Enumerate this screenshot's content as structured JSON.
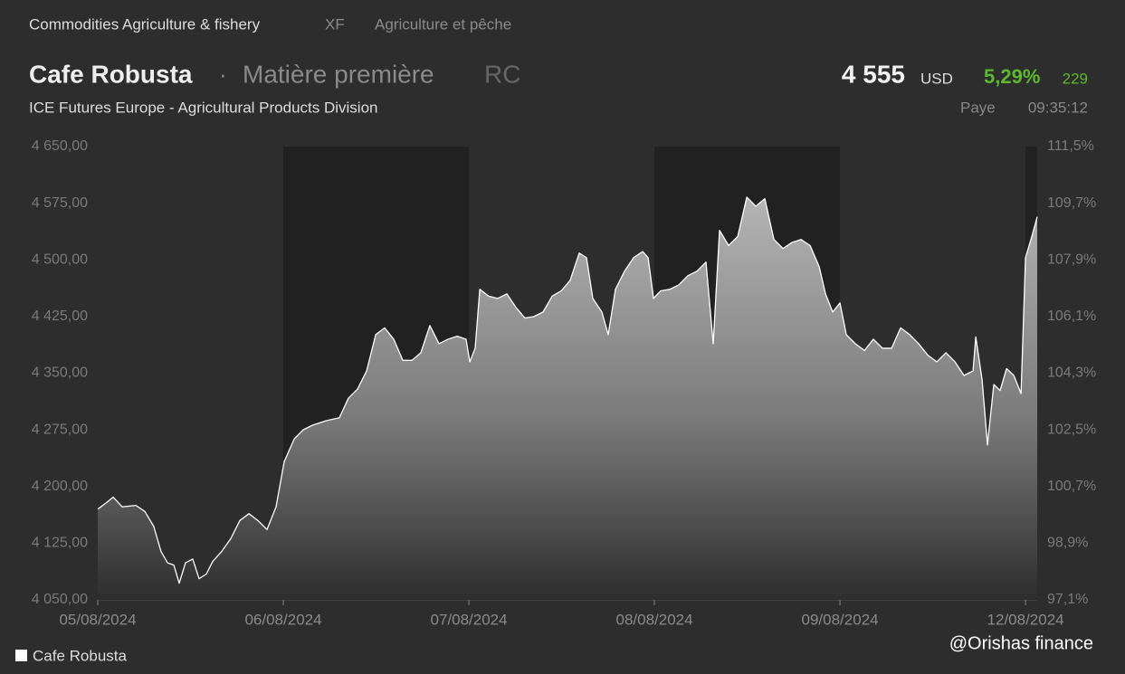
{
  "header": {
    "breadcrumb": "Commodities Agriculture & fishery",
    "code": "XF",
    "category": "Agriculture et pêche",
    "name": "Cafe Robusta",
    "separator": "·",
    "kind": "Matière première",
    "symbol": "RC",
    "price": "4 555",
    "currency": "USD",
    "change_pct": "5,29%",
    "change": "229",
    "exchange": "ICE Futures Europe - Agricultural Products Division",
    "status": "Paye",
    "time": "09:35:12"
  },
  "watermark": "@Orishas finance",
  "chart_data": {
    "type": "area",
    "xlim": [
      0,
      5.063
    ],
    "xticks": [
      {
        "value": 0,
        "label": "05/08/2024"
      },
      {
        "value": 1,
        "label": "06/08/2024"
      },
      {
        "value": 2,
        "label": "07/08/2024"
      },
      {
        "value": 3,
        "label": "08/08/2024"
      },
      {
        "value": 4,
        "label": "09/08/2024"
      },
      {
        "value": 5,
        "label": "12/08/2024"
      }
    ],
    "ylim": [
      4050,
      4650
    ],
    "yticks": [
      {
        "value": 4650,
        "label": "4 650,00"
      },
      {
        "value": 4575,
        "label": "4 575,00"
      },
      {
        "value": 4500,
        "label": "4 500,00"
      },
      {
        "value": 4425,
        "label": "4 425,00"
      },
      {
        "value": 4350,
        "label": "4 350,00"
      },
      {
        "value": 4275,
        "label": "4 275,00"
      },
      {
        "value": 4200,
        "label": "4 200,00"
      },
      {
        "value": 4125,
        "label": "4 125,00"
      },
      {
        "value": 4050,
        "label": "4 050,00"
      }
    ],
    "y2lim": [
      97.1,
      111.5
    ],
    "y2ticks": [
      {
        "value": 111.5,
        "label": "111,5%"
      },
      {
        "value": 109.7,
        "label": "109,7%"
      },
      {
        "value": 107.9,
        "label": "107,9%"
      },
      {
        "value": 106.1,
        "label": "106,1%"
      },
      {
        "value": 104.3,
        "label": "104,3%"
      },
      {
        "value": 102.5,
        "label": "102,5%"
      },
      {
        "value": 100.7,
        "label": "100,7%"
      },
      {
        "value": 98.9,
        "label": "98,9%"
      },
      {
        "value": 97.1,
        "label": "97,1%"
      }
    ],
    "series": [
      {
        "name": "Cafe Robusta",
        "color": "#ffffff",
        "x": [
          0,
          0.049,
          0.083,
          0.132,
          0.205,
          0.254,
          0.302,
          0.341,
          0.376,
          0.41,
          0.439,
          0.473,
          0.512,
          0.546,
          0.585,
          0.62,
          0.668,
          0.717,
          0.766,
          0.815,
          0.863,
          0.912,
          0.961,
          1.005,
          1.059,
          1.107,
          1.156,
          1.229,
          1.302,
          1.351,
          1.4,
          1.449,
          1.498,
          1.546,
          1.595,
          1.644,
          1.693,
          1.741,
          1.79,
          1.839,
          1.888,
          1.937,
          1.985,
          2.005,
          2.034,
          2.059,
          2.107,
          2.156,
          2.205,
          2.254,
          2.302,
          2.351,
          2.4,
          2.449,
          2.498,
          2.546,
          2.595,
          2.634,
          2.668,
          2.717,
          2.751,
          2.79,
          2.839,
          2.888,
          2.937,
          2.966,
          2.995,
          3.034,
          3.083,
          3.132,
          3.18,
          3.229,
          3.278,
          3.317,
          3.351,
          3.4,
          3.449,
          3.498,
          3.546,
          3.595,
          3.644,
          3.693,
          3.741,
          3.79,
          3.839,
          3.888,
          3.922,
          3.961,
          4,
          4.034,
          4.083,
          4.132,
          4.18,
          4.229,
          4.278,
          4.327,
          4.376,
          4.424,
          4.473,
          4.522,
          4.571,
          4.62,
          4.668,
          4.717,
          4.732,
          4.766,
          4.795,
          4.829,
          4.863,
          4.898,
          4.937,
          4.976,
          5,
          5.034,
          5.063
        ],
        "values": [
          4170,
          4179,
          4186,
          4173,
          4175,
          4167,
          4147,
          4114,
          4099,
          4096,
          4072,
          4099,
          4104,
          4078,
          4084,
          4101,
          4114,
          4131,
          4155,
          4164,
          4155,
          4143,
          4173,
          4233,
          4263,
          4275,
          4281,
          4287,
          4291,
          4317,
          4329,
          4353,
          4401,
          4410,
          4395,
          4367,
          4367,
          4377,
          4413,
          4389,
          4395,
          4399,
          4395,
          4365,
          4383,
          4461,
          4452,
          4449,
          4455,
          4437,
          4423,
          4425,
          4431,
          4452,
          4459,
          4473,
          4509,
          4503,
          4449,
          4431,
          4401,
          4461,
          4485,
          4503,
          4511,
          4503,
          4449,
          4459,
          4461,
          4467,
          4479,
          4485,
          4497,
          4389,
          4539,
          4519,
          4531,
          4583,
          4571,
          4581,
          4527,
          4515,
          4523,
          4527,
          4519,
          4491,
          4455,
          4431,
          4443,
          4401,
          4389,
          4380,
          4395,
          4383,
          4383,
          4410,
          4401,
          4389,
          4374,
          4365,
          4377,
          4365,
          4347,
          4353,
          4398,
          4341,
          4255,
          4335,
          4327,
          4356,
          4347,
          4323,
          4503,
          4531,
          4557
        ]
      }
    ]
  }
}
